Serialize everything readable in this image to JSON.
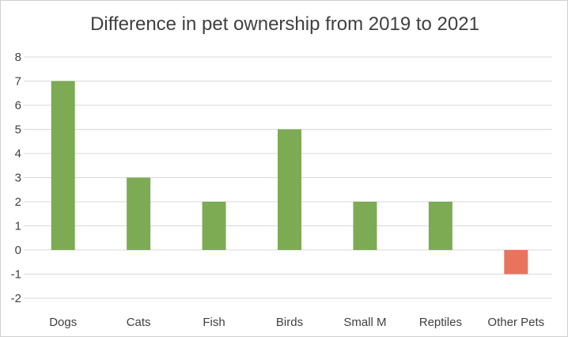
{
  "chart_data": {
    "type": "bar",
    "title": "Difference in pet ownership from 2019 to 2021",
    "xlabel": "",
    "ylabel": "",
    "categories": [
      "Dogs",
      "Cats",
      "Fish",
      "Birds",
      "Small M",
      "Reptiles",
      "Other Pets"
    ],
    "values": [
      7,
      3,
      2,
      5,
      2,
      2,
      -1
    ],
    "ylim": [
      -2,
      8
    ],
    "yticks": [
      "8",
      "7",
      "6",
      "5",
      "4",
      "3",
      "2",
      "1",
      "0",
      "-1",
      "-2"
    ],
    "grid": true,
    "legend": "none",
    "colors": {
      "positive": "#7dab54",
      "negative": "#e8745e",
      "gridline": "#d9d9d9",
      "text": "#404040"
    }
  }
}
